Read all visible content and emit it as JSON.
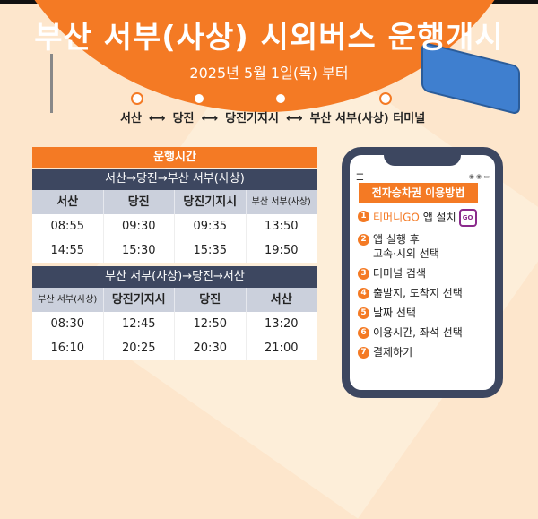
{
  "header": {
    "title": "부산 서부(사상) 시외버스 운행개시",
    "date": "2025년 5월 1일(목) 부터",
    "route": [
      "서산",
      "⟷",
      "당진",
      "⟷",
      "당진기지시",
      "⟷",
      "부산 서부(사상) 터미널"
    ]
  },
  "timetable": {
    "title": "운행시간",
    "outbound": {
      "label": "서산→당진→부산 서부(사상)",
      "columns": [
        "서산",
        "당진",
        "당진기지시",
        "부산 서부(사상)"
      ],
      "rows": [
        [
          "08:55",
          "09:30",
          "09:35",
          "13:50"
        ],
        [
          "14:55",
          "15:30",
          "15:35",
          "19:50"
        ]
      ]
    },
    "inbound": {
      "label": "부산 서부(사상)→당진→서산",
      "columns": [
        "부산 서부(사상)",
        "당진기지시",
        "당진",
        "서산"
      ],
      "rows": [
        [
          "08:30",
          "12:45",
          "12:50",
          "13:20"
        ],
        [
          "16:10",
          "20:25",
          "20:30",
          "21:00"
        ]
      ]
    }
  },
  "phone": {
    "title": "전자승차권 이용방법",
    "app_name": "티머니GO",
    "app_icon_text": "GO",
    "steps": [
      {
        "num": "1",
        "text": "앱 설치"
      },
      {
        "num": "2",
        "text": "앱 실행 후",
        "text2": "고속·시외 선택"
      },
      {
        "num": "3",
        "text": "터미널 검색"
      },
      {
        "num": "4",
        "text": "출발지, 도착지 선택"
      },
      {
        "num": "5",
        "text": "날짜 선택"
      },
      {
        "num": "6",
        "text": "이용시간, 좌석 선택"
      },
      {
        "num": "7",
        "text": "결제하기"
      }
    ]
  },
  "colors": {
    "accent": "#f47a24",
    "navy": "#3d4760",
    "background": "#fde6cc"
  }
}
